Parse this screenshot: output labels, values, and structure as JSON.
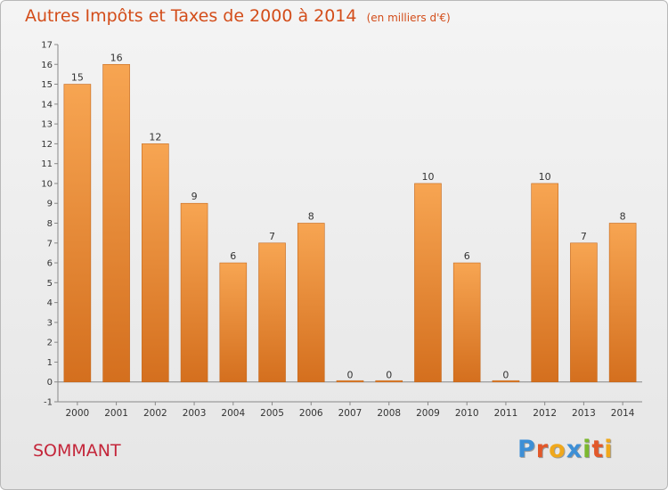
{
  "chart_data": {
    "type": "bar",
    "title": "Autres Impôts et Taxes de 2000 à 2014",
    "subtitle": "(en milliers d'€)",
    "xlabel": "",
    "ylabel": "",
    "categories": [
      "2000",
      "2001",
      "2002",
      "2003",
      "2004",
      "2005",
      "2006",
      "2007",
      "2008",
      "2009",
      "2010",
      "2011",
      "2012",
      "2013",
      "2014"
    ],
    "values": [
      15,
      16,
      12,
      9,
      6,
      7,
      8,
      0,
      0,
      10,
      6,
      0,
      10,
      7,
      8
    ],
    "data_labels": [
      "15",
      "16",
      "12",
      "9",
      "6",
      "7",
      "8",
      "0",
      "0",
      "10",
      "6",
      "0",
      "10",
      "7",
      "8"
    ],
    "yticks": [
      -1,
      0,
      1,
      2,
      3,
      4,
      5,
      6,
      7,
      8,
      9,
      10,
      11,
      12,
      13,
      14,
      15,
      16,
      17
    ],
    "ylim": [
      -1,
      17
    ],
    "grid": false,
    "bar_color": "#f0923e"
  },
  "footer": {
    "commune": "SOMMANT",
    "logo_letters": [
      "P",
      "r",
      "o",
      "x",
      "i",
      "t",
      "i"
    ],
    "logo_colors": [
      "#3d8fd6",
      "#e2582a",
      "#f0a81c",
      "#3d8fd6",
      "#7cb82f",
      "#e2582a",
      "#f0a81c"
    ]
  }
}
